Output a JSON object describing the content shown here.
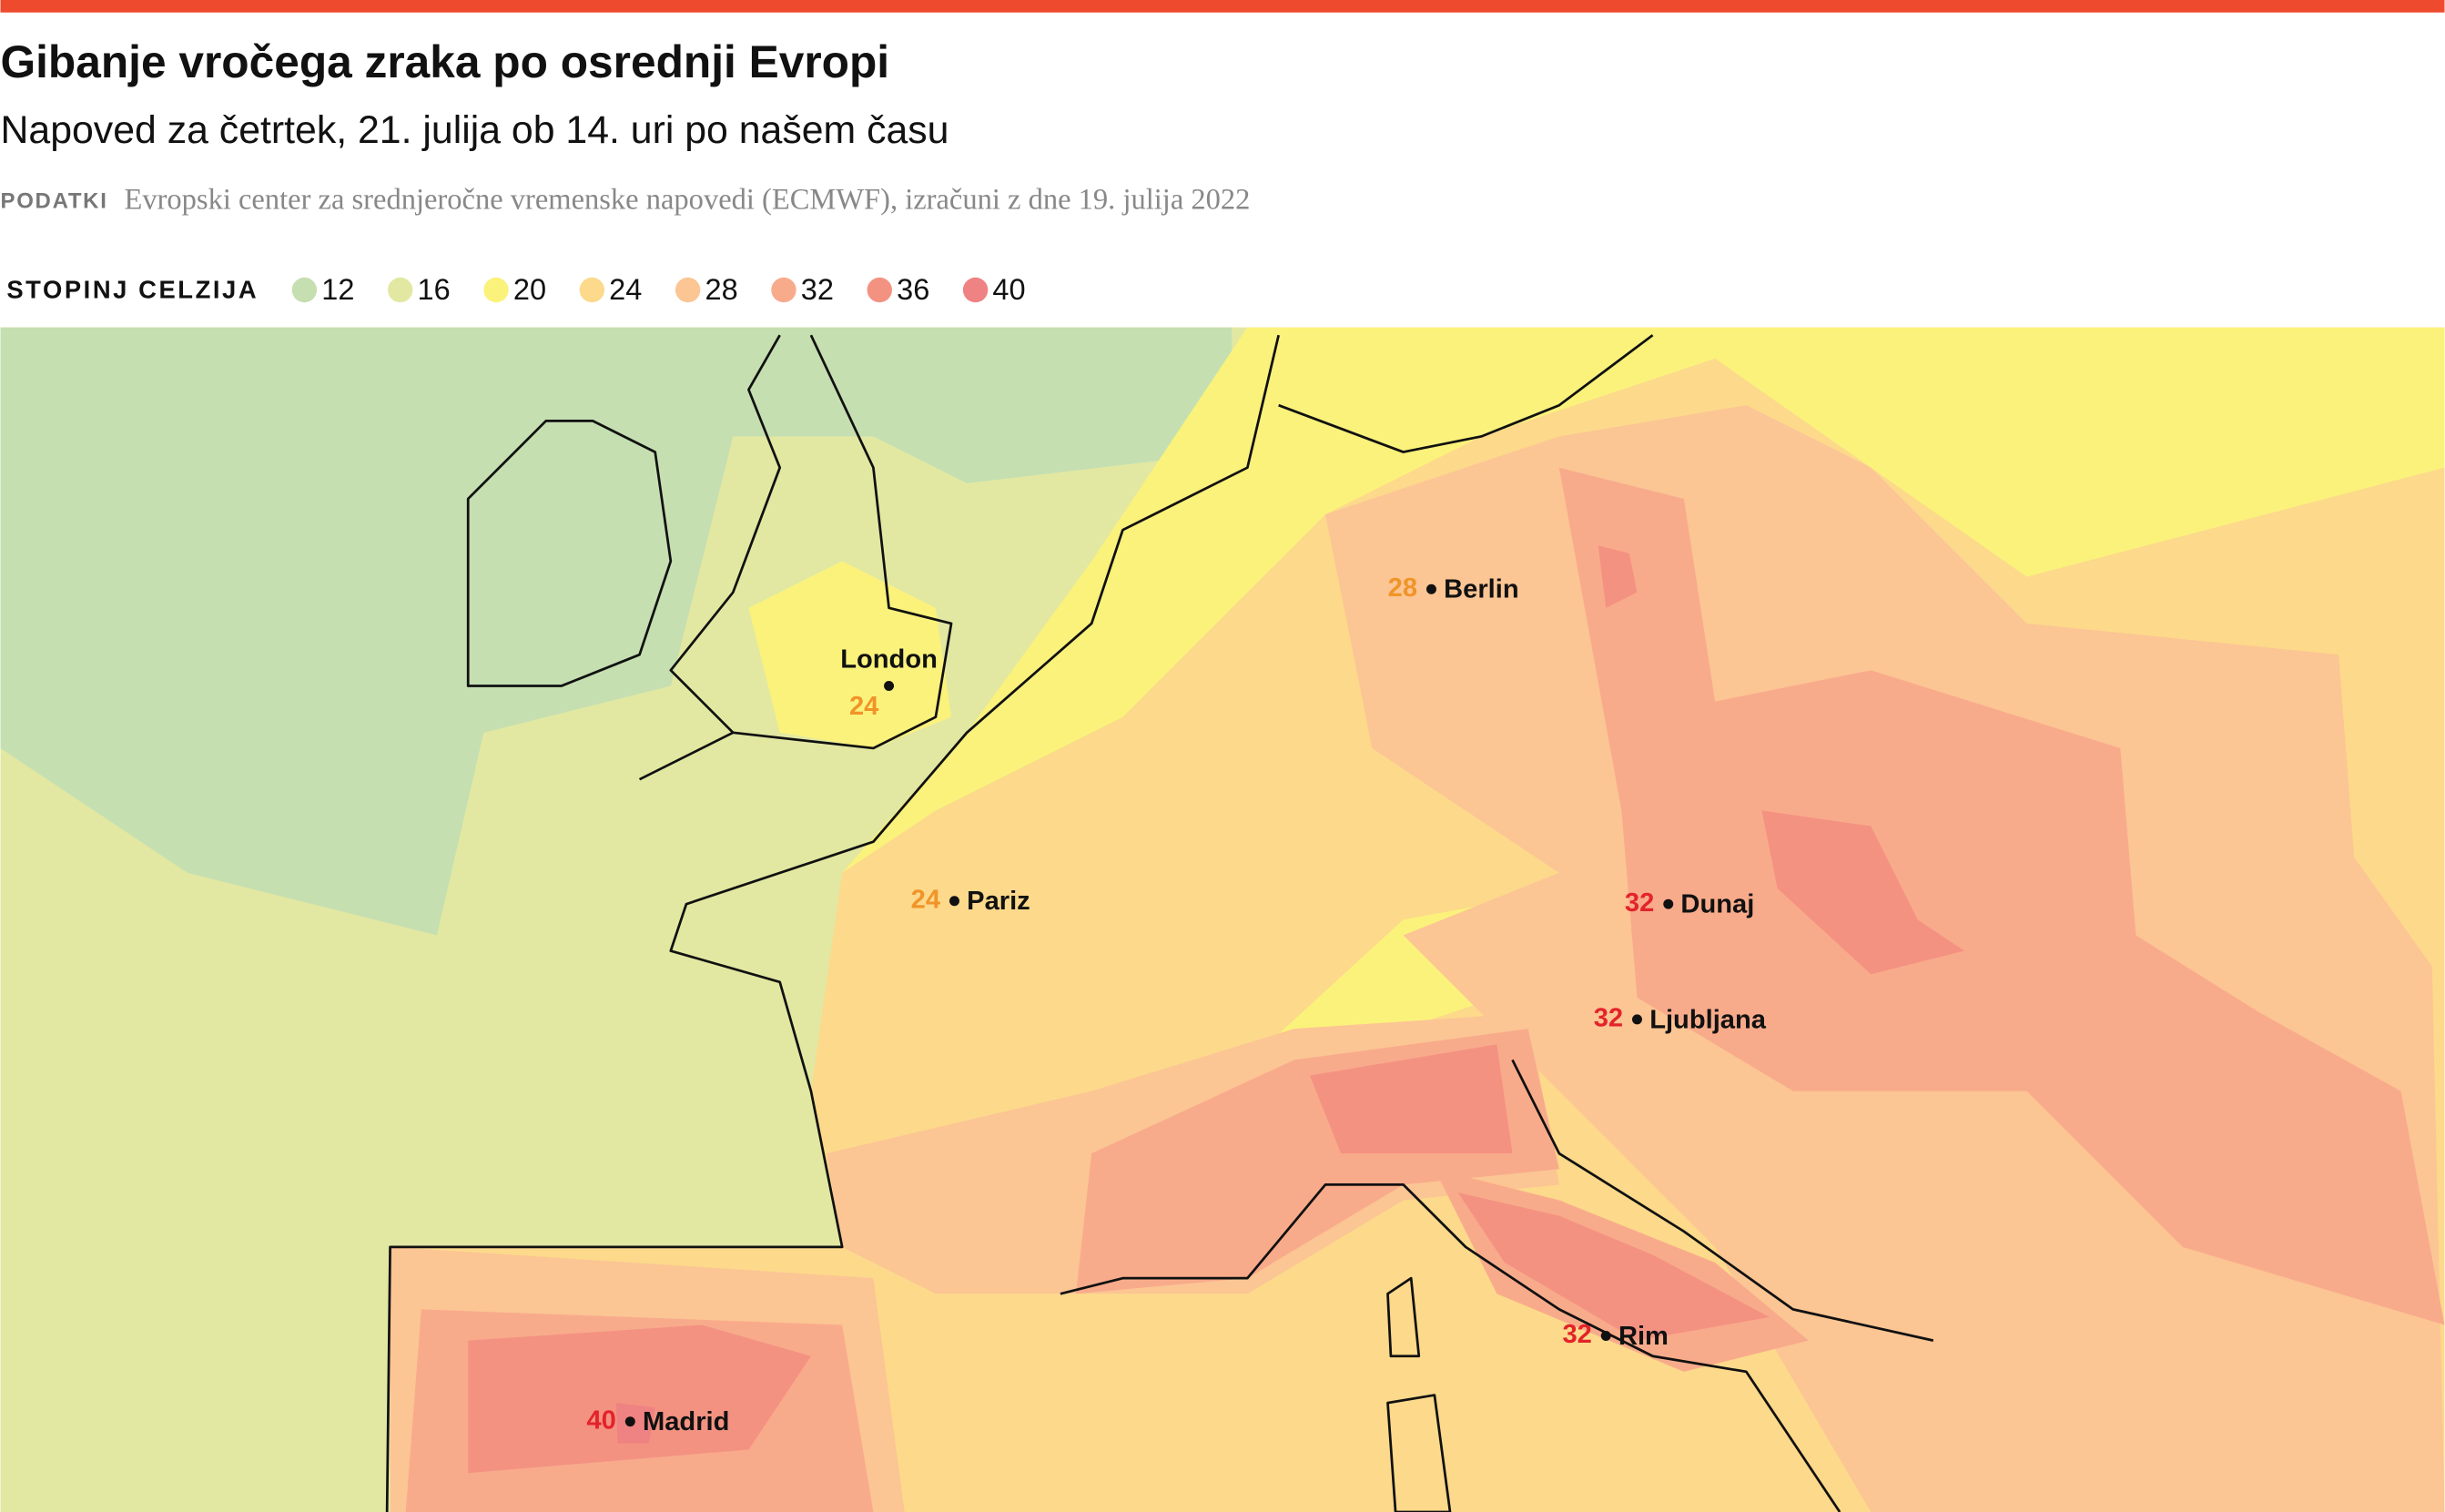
{
  "header": {
    "title": "Gibanje vročega zraka po osrednji Evropi",
    "subtitle": "Napoved za četrtek, 21. julija ob 14. uri po našem času",
    "source_label": "PODATKI",
    "source": "Evropski center za srednjeročne vremenske napovedi (ECMWF), izračuni z dne 19. julija 2022"
  },
  "legend": {
    "title": "STOPINJ CELZIJA",
    "items": [
      {
        "value": 12,
        "color": "#c5dfb1"
      },
      {
        "value": 16,
        "color": "#e2e8a2"
      },
      {
        "value": 20,
        "color": "#fbf27c"
      },
      {
        "value": 24,
        "color": "#fcd98b"
      },
      {
        "value": 28,
        "color": "#fcc594"
      },
      {
        "value": 32,
        "color": "#f8ab8b"
      },
      {
        "value": 36,
        "color": "#f49282"
      },
      {
        "value": 40,
        "color": "#ef8282"
      }
    ]
  },
  "cities": [
    {
      "name": "Berlin",
      "temp": 28,
      "color": "#f09428"
    },
    {
      "name": "London",
      "temp": 24,
      "color": "#f09428"
    },
    {
      "name": "Pariz",
      "temp": 24,
      "color": "#f09428"
    },
    {
      "name": "Dunaj",
      "temp": 32,
      "color": "#e3232a"
    },
    {
      "name": "Ljubljana",
      "temp": 32,
      "color": "#e3232a"
    },
    {
      "name": "Rim",
      "temp": 32,
      "color": "#e3232a"
    },
    {
      "name": "Madrid",
      "temp": 40,
      "color": "#e3232a"
    }
  ]
}
